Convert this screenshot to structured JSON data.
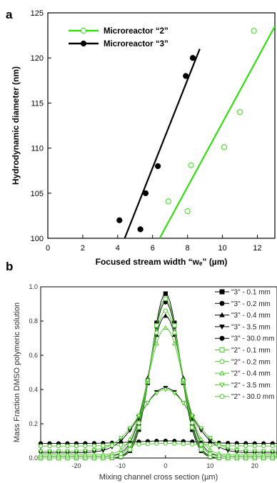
{
  "chart_data": [
    {
      "type": "scatter",
      "panel_label": "a",
      "xlabel": "Focused stream width “wₑ” (µm)",
      "ylabel": "Hydrodynamic diameter (nm)",
      "xlim": [
        0,
        13
      ],
      "ylim": [
        100,
        125
      ],
      "xticks": [
        0,
        2,
        4,
        6,
        8,
        10,
        12
      ],
      "yticks": [
        100,
        105,
        110,
        115,
        120,
        125
      ],
      "legend": "top-left",
      "series": [
        {
          "name": "Microreactor “2”",
          "color": "#33dd11",
          "marker": "open-circle",
          "points": [
            [
              6.9,
              104.1
            ],
            [
              8.0,
              103.0
            ],
            [
              8.2,
              108.1
            ],
            [
              10.1,
              110.1
            ],
            [
              11.0,
              114.0
            ],
            [
              11.8,
              123.0
            ]
          ],
          "fit": [
            [
              6.4,
              100
            ],
            [
              13.0,
              123.5
            ]
          ]
        },
        {
          "name": "Microreactor “3”",
          "color": "#000000",
          "marker": "filled-circle",
          "points": [
            [
              4.1,
              102.0
            ],
            [
              5.3,
              101.0
            ],
            [
              5.6,
              105.0
            ],
            [
              6.3,
              108.0
            ],
            [
              7.9,
              118.0
            ],
            [
              8.3,
              120.0
            ]
          ],
          "fit": [
            [
              4.4,
              100
            ],
            [
              8.7,
              121.0
            ]
          ]
        }
      ]
    },
    {
      "type": "line",
      "panel_label": "b",
      "xlabel": "Mixing channel cross section (µm)",
      "ylabel": "Mass Fraction DMSO polymeric solution",
      "xlim": [
        -28,
        25
      ],
      "ylim": [
        0,
        1.0
      ],
      "xticks": [
        -20,
        -10,
        0,
        10,
        20
      ],
      "yticks": [
        0.0,
        0.2,
        0.4,
        0.6,
        0.8,
        1.0
      ],
      "legend": "top-right",
      "x": [
        -28,
        -26,
        -24,
        -22,
        -20,
        -18,
        -16,
        -14,
        -12,
        -10,
        -8,
        -6,
        -4,
        -2,
        0,
        2,
        4,
        6,
        8,
        10,
        12,
        14,
        16,
        18,
        20,
        22,
        24
      ],
      "series": [
        {
          "name": "\"3\" - 0.1 mm",
          "color": "#000000",
          "marker": "filled-square",
          "peak": 0.96,
          "base": 0.0,
          "width": 3.2
        },
        {
          "name": "\"3\" - 0.2 mm",
          "color": "#000000",
          "marker": "filled-circle",
          "peak": 0.91,
          "base": 0.0,
          "width": 3.4
        },
        {
          "name": "\"3\" - 0.4 mm",
          "color": "#000000",
          "marker": "filled-triangle-up",
          "peak": 0.83,
          "base": 0.01,
          "width": 3.7
        },
        {
          "name": "\"3\" - 3.5 mm",
          "color": "#000000",
          "marker": "filled-triangle-down",
          "peak": 0.41,
          "base": 0.03,
          "width": 5.5
        },
        {
          "name": "\"3\" - 30.0 mm",
          "color": "#000000",
          "marker": "filled-circle",
          "peak": 0.1,
          "base": 0.085,
          "width": 7.0
        },
        {
          "name": "\"2\" - 0.1 mm",
          "color": "#44cc22",
          "marker": "open-square",
          "peak": 0.93,
          "base": 0.0,
          "width": 3.3
        },
        {
          "name": "\"2\" - 0.2 mm",
          "color": "#44cc22",
          "marker": "open-circle",
          "peak": 0.86,
          "base": 0.01,
          "width": 3.5
        },
        {
          "name": "\"2\" - 0.4 mm",
          "color": "#44cc22",
          "marker": "open-triangle-up",
          "peak": 0.76,
          "base": 0.02,
          "width": 3.9
        },
        {
          "name": "\"2\" - 3.5 mm",
          "color": "#44cc22",
          "marker": "open-triangle-down",
          "peak": 0.4,
          "base": 0.04,
          "width": 5.7
        },
        {
          "name": "\"2\" - 30.0 mm",
          "color": "#44cc22",
          "marker": "open-circle",
          "peak": 0.085,
          "base": 0.07,
          "width": 7.0
        }
      ]
    }
  ]
}
